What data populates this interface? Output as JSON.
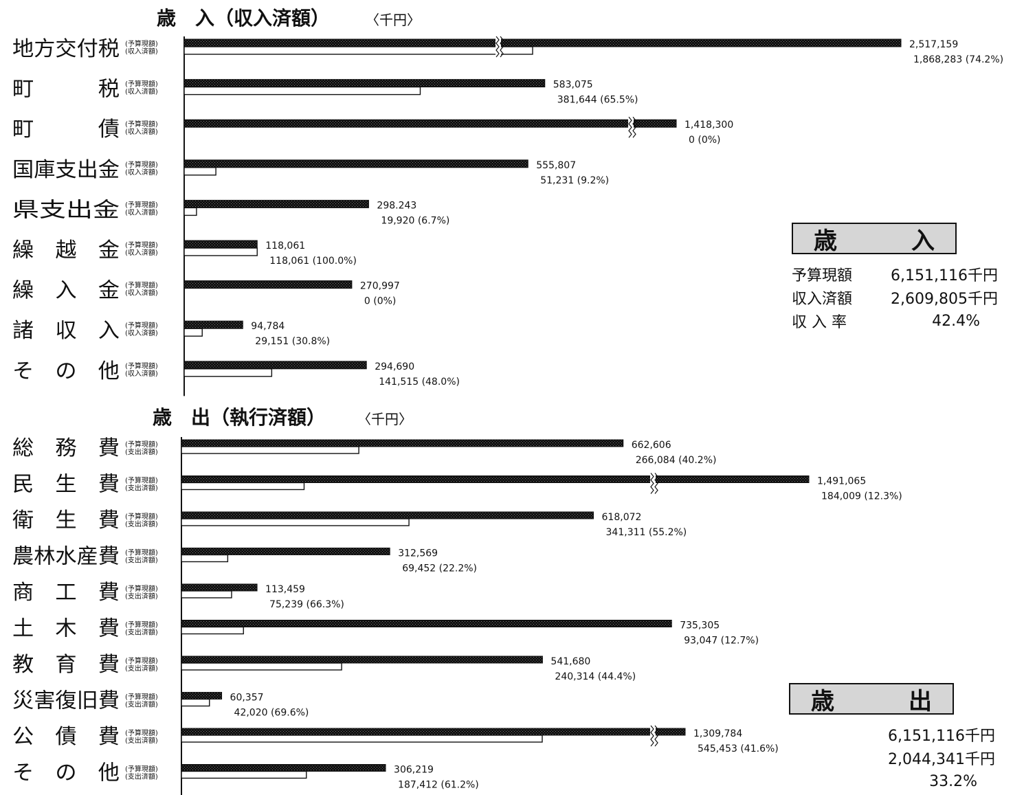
{
  "chart_data": [
    {
      "type": "bar",
      "title": "歳　入（収入済額）",
      "unit": "〈千円〉",
      "series": [
        {
          "name": "予算現額"
        },
        {
          "name": "収入済額"
        }
      ],
      "categories": [
        "地方交付税",
        "町　　　税",
        "町　　　債",
        "国庫支出金",
        "県支出金",
        "繰　越　金",
        "繰　入　金",
        "諸　収　入",
        "そ　の　他"
      ],
      "rows": [
        {
          "label": "地方交付税",
          "budget": 2517159,
          "budget_text": "2,517,159",
          "actual": 1868283,
          "actual_text": "1,868,283",
          "rate_text": "(74.2%)",
          "broken": true
        },
        {
          "label": "町　　　税",
          "budget": 583075,
          "budget_text": "583,075",
          "actual": 381644,
          "actual_text": "381,644",
          "rate_text": "(65.5%)",
          "broken": false
        },
        {
          "label": "町　　　債",
          "budget": 1418300,
          "budget_text": "1,418,300",
          "actual": 0,
          "actual_text": "0",
          "rate_text": "(0%)",
          "broken": true
        },
        {
          "label": "国庫支出金",
          "budget": 555807,
          "budget_text": "555,807",
          "actual": 51231,
          "actual_text": "51,231",
          "rate_text": "(9.2%)",
          "broken": false
        },
        {
          "label": "県支出金",
          "budget": 298243,
          "budget_text": "298.243",
          "actual": 19920,
          "actual_text": "19,920",
          "rate_text": "(6.7%)",
          "broken": false
        },
        {
          "label": "繰　越　金",
          "budget": 118061,
          "budget_text": "118,061",
          "actual": 118061,
          "actual_text": "118,061",
          "rate_text": "(100.0%)",
          "broken": false
        },
        {
          "label": "繰　入　金",
          "budget": 270997,
          "budget_text": "270,997",
          "actual": 0,
          "actual_text": "0",
          "rate_text": "(0%)",
          "broken": false
        },
        {
          "label": "諸　収　入",
          "budget": 94784,
          "budget_text": "94,784",
          "actual": 29151,
          "actual_text": "29,151",
          "rate_text": "(30.8%)",
          "broken": false
        },
        {
          "label": "そ　の　他",
          "budget": 294690,
          "budget_text": "294,690",
          "actual": 141515,
          "actual_text": "141,515",
          "rate_text": "(48.0%)",
          "broken": false
        }
      ]
    },
    {
      "type": "bar",
      "title": "歳　出（執行済額）",
      "unit": "〈千円〉",
      "series": [
        {
          "name": "予算現額"
        },
        {
          "name": "支出済額"
        }
      ],
      "categories": [
        "総　務　費",
        "民　生　費",
        "衛　生　費",
        "農林水産費",
        "商　工　費",
        "土　木　費",
        "教　育　費",
        "災害復旧費",
        "公　債　費",
        "そ　の　他"
      ],
      "rows": [
        {
          "label": "総　務　費",
          "budget": 662606,
          "budget_text": "662,606",
          "actual": 266084,
          "actual_text": "266,084",
          "rate_text": "(40.2%)",
          "broken": false
        },
        {
          "label": "民　生　費",
          "budget": 1491065,
          "budget_text": "1,491,065",
          "actual": 184009,
          "actual_text": "184,009",
          "rate_text": "(12.3%)",
          "broken": true
        },
        {
          "label": "衛　生　費",
          "budget": 618072,
          "budget_text": "618,072",
          "actual": 341311,
          "actual_text": "341,311",
          "rate_text": "(55.2%)",
          "broken": false
        },
        {
          "label": "農林水産費",
          "budget": 312569,
          "budget_text": "312,569",
          "actual": 69452,
          "actual_text": "69,452",
          "rate_text": "(22.2%)",
          "broken": false
        },
        {
          "label": "商　工　費",
          "budget": 113459,
          "budget_text": "113,459",
          "actual": 75239,
          "actual_text": "75,239",
          "rate_text": "(66.3%)",
          "broken": false
        },
        {
          "label": "土　木　費",
          "budget": 735305,
          "budget_text": "735,305",
          "actual": 93047,
          "actual_text": "93,047",
          "rate_text": "(12.7%)",
          "broken": false
        },
        {
          "label": "教　育　費",
          "budget": 541680,
          "budget_text": "541,680",
          "actual": 240314,
          "actual_text": "240,314",
          "rate_text": "(44.4%)",
          "broken": false
        },
        {
          "label": "災害復旧費",
          "budget": 60357,
          "budget_text": "60,357",
          "actual": 42020,
          "actual_text": "42,020",
          "rate_text": "(69.6%)",
          "broken": false
        },
        {
          "label": "公　債　費",
          "budget": 1309784,
          "budget_text": "1,309,784",
          "actual": 545453,
          "actual_text": "545,453",
          "rate_text": "(41.6%)",
          "broken": true
        },
        {
          "label": "そ　の　他",
          "budget": 306219,
          "budget_text": "306,219",
          "actual": 187412,
          "actual_text": "187,412",
          "rate_text": "(61.2%)",
          "broken": false
        }
      ]
    }
  ],
  "summary": {
    "revenue": {
      "heading_left": "歳",
      "heading_right": "入",
      "rows": [
        {
          "label": "予算現額",
          "value": "6,151,116千円"
        },
        {
          "label": "収入済額",
          "value": "2,609,805千円"
        },
        {
          "label": "収 入 率",
          "value": "42.4%"
        }
      ]
    },
    "expenditure": {
      "heading_left": "歳",
      "heading_right": "出",
      "rows": [
        {
          "label": "",
          "value": "6,151,116千円"
        },
        {
          "label": "",
          "value": "2,044,341千円"
        },
        {
          "label": "",
          "value": "33.2%"
        }
      ]
    }
  },
  "colors": {
    "budget_fill": "#111111",
    "actual_fill": "#ffffff",
    "panel_fill": "#d6d6d6"
  }
}
